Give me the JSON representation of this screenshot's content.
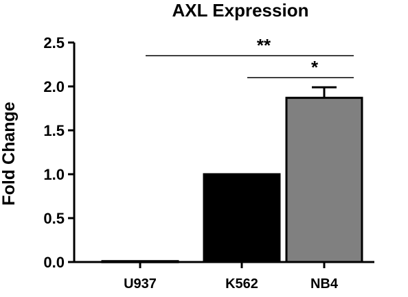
{
  "chart_data": {
    "type": "bar",
    "title": "AXL Expression",
    "xlabel": "",
    "ylabel": "Fold Change",
    "categories": [
      "U937",
      "K562",
      "NB4"
    ],
    "values": [
      0.01,
      1.0,
      1.87
    ],
    "error_upper": [
      0,
      0,
      0.12
    ],
    "bar_colors": [
      "#ffffff",
      "#000000",
      "#808080"
    ],
    "ylim": [
      0,
      2.5
    ],
    "yticks": [
      "0.0",
      "0.5",
      "1.0",
      "1.5",
      "2.0",
      "2.5"
    ],
    "grid": false,
    "legend": "none",
    "significance": [
      {
        "from": "U937",
        "to": "NB4",
        "label": "**",
        "y": 2.35
      },
      {
        "from": "K562",
        "to": "NB4",
        "label": "*",
        "y": 2.1
      }
    ]
  }
}
